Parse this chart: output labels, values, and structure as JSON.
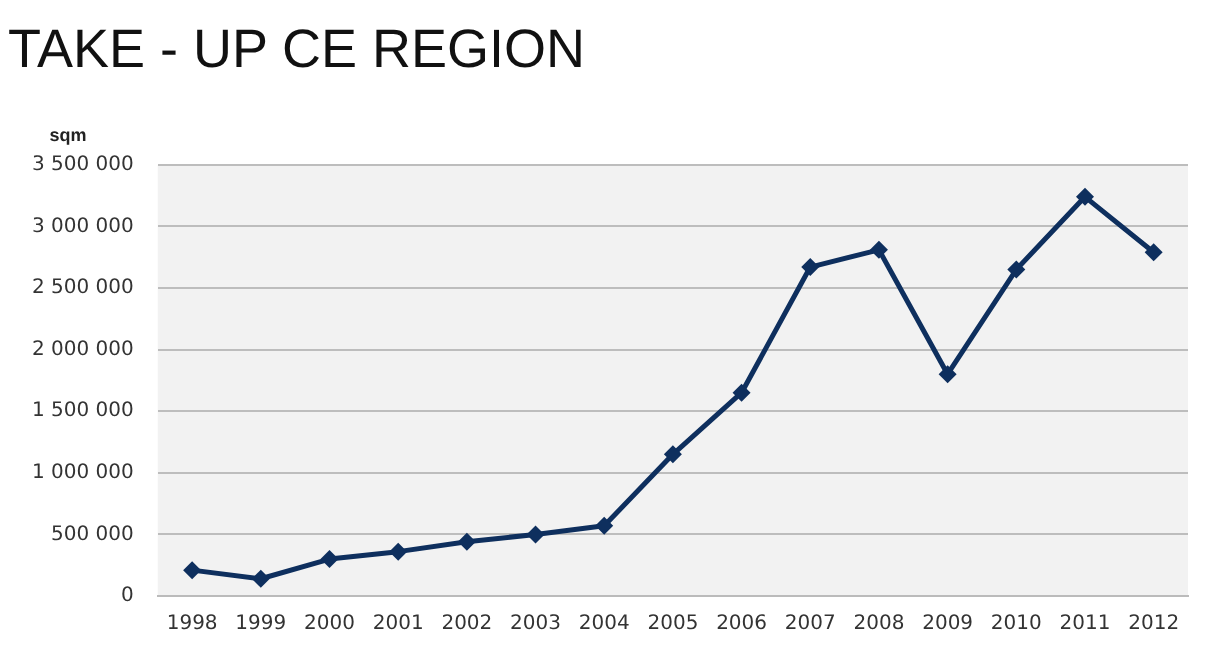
{
  "chart_data": {
    "type": "line",
    "title": "TAKE - UP CE REGION",
    "ylabel": "sqm",
    "categories": [
      "1998",
      "1999",
      "2000",
      "2001",
      "2002",
      "2003",
      "2004",
      "2005",
      "2006",
      "2007",
      "2008",
      "2009",
      "2010",
      "2011",
      "2012"
    ],
    "series": [
      {
        "color": "#0e2f5e",
        "values": [
          210000,
          140000,
          300000,
          360000,
          440000,
          500000,
          570000,
          1150000,
          1650000,
          2670000,
          2810000,
          1800000,
          2650000,
          3240000,
          2790000
        ]
      }
    ],
    "ylim": [
      0,
      3500000
    ],
    "yticks": [
      0,
      {
        "value": 500000,
        "label": "500 000"
      },
      {
        "value": 1000000,
        "label": "1 000 000"
      },
      {
        "value": 1500000,
        "label": "1 500 000"
      },
      {
        "value": 2000000,
        "label": "2 000 000"
      },
      {
        "value": 2500000,
        "label": "2 500 000"
      },
      {
        "value": 3000000,
        "label": "3 000 000"
      },
      {
        "value": 3500000,
        "label": "3 500 000"
      }
    ],
    "grid": "y",
    "legend": false,
    "marker": "diamond",
    "line_style": "solid"
  }
}
